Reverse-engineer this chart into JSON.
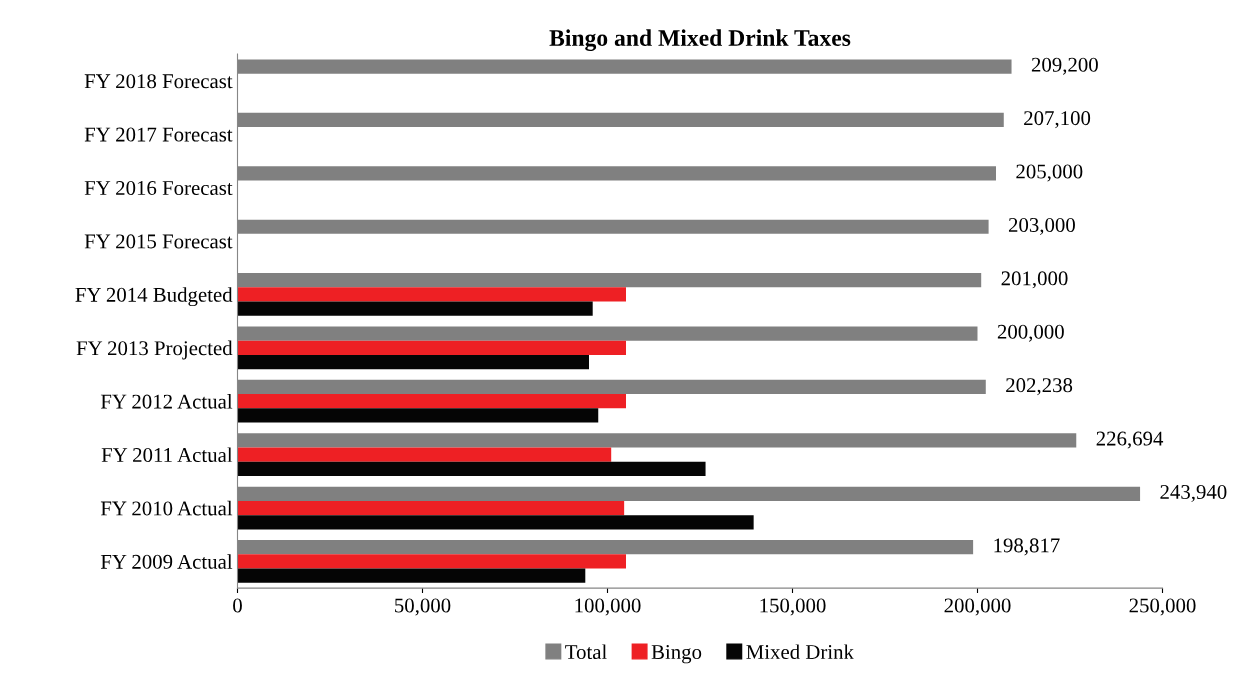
{
  "chart_data": {
    "type": "bar",
    "orientation": "horizontal",
    "title": "Bingo and Mixed Drink Taxes",
    "categories": [
      "FY 2018 Forecast",
      "FY 2017 Forecast",
      "FY 2016 Forecast",
      "FY 2015 Forecast",
      "FY 2014 Budgeted",
      "FY 2013 Projected",
      "FY 2012 Actual",
      "FY 2011 Actual",
      "FY 2010 Actual",
      "FY 2009 Actual"
    ],
    "series": [
      {
        "name": "Total",
        "color": "#808080",
        "values": [
          209200,
          207100,
          205000,
          203000,
          201000,
          200000,
          202238,
          226694,
          243940,
          198817
        ],
        "value_labels": [
          "209,200",
          "207,100",
          "205,000",
          "203,000",
          "201,000",
          "200,000",
          "202,238",
          "226,694",
          "243,940",
          "198,817"
        ]
      },
      {
        "name": "Bingo",
        "color": "#ee2024",
        "values": [
          null,
          null,
          null,
          null,
          105000,
          105000,
          105000,
          101000,
          104500,
          105000
        ]
      },
      {
        "name": "Mixed Drink",
        "color": "#050505",
        "values": [
          null,
          null,
          null,
          null,
          96000,
          95000,
          97500,
          126500,
          139500,
          94000
        ]
      }
    ],
    "xlim": [
      0,
      250000
    ],
    "xticks": [
      0,
      {
        "value": 50000,
        "label": "50,000"
      },
      {
        "value": 100000,
        "label": "100,000"
      },
      {
        "value": 150000,
        "label": "150,000"
      },
      {
        "value": 200000,
        "label": "200,000"
      },
      {
        "value": 250000,
        "label": "250,000"
      }
    ],
    "grid": false,
    "legend": "bottom"
  }
}
